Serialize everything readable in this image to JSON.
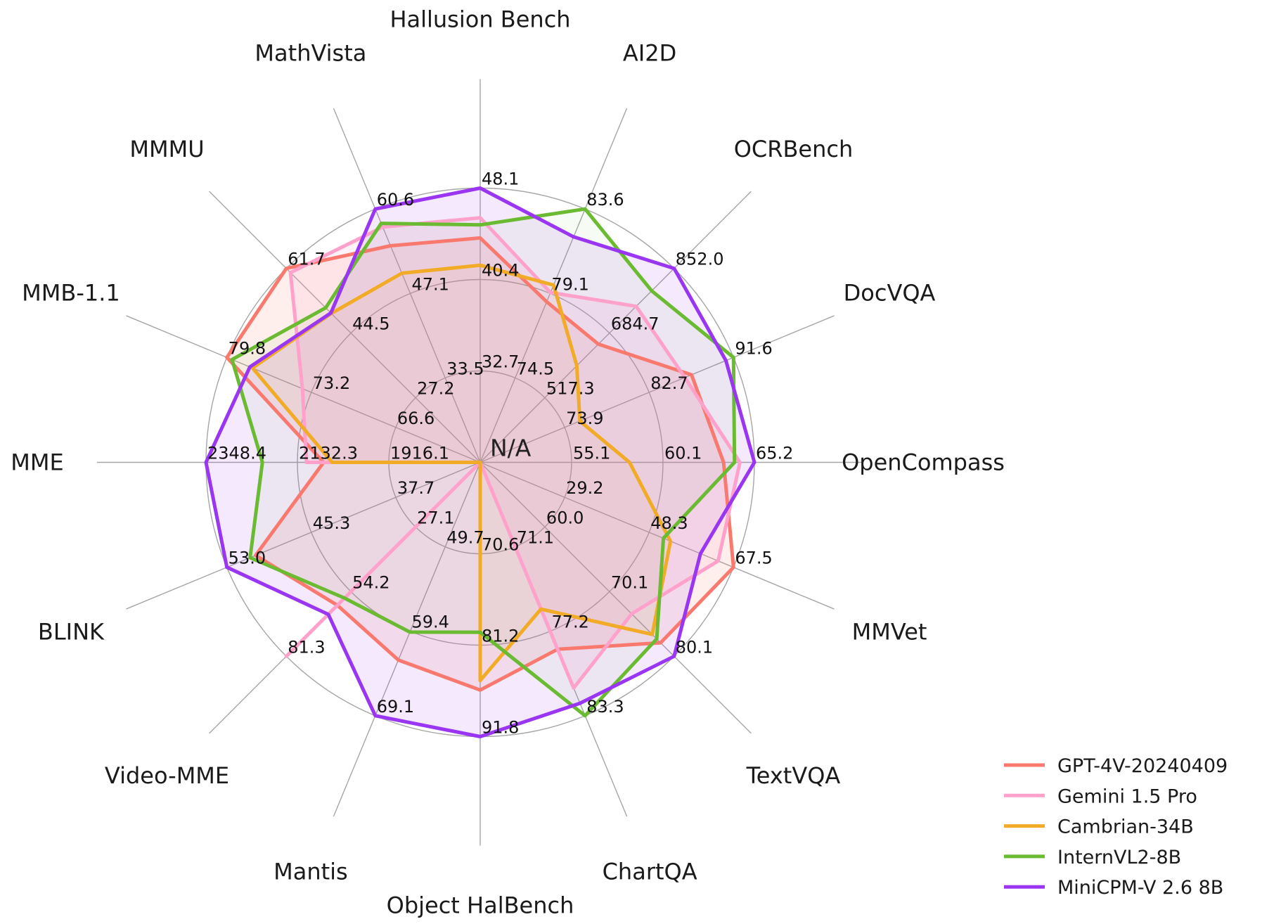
{
  "chart_data": {
    "type": "radar",
    "title": "",
    "center_label": "N/A",
    "grid": {
      "rings_per_axis": 3,
      "ring_fractions": [
        0.3333,
        0.6667,
        1.0
      ],
      "gridlines": true,
      "gridline_color": "#a6a6a6"
    },
    "legend_position": "lower right",
    "axes": [
      {
        "label": "Hallusion Bench",
        "min": 32.7,
        "mid": 40.4,
        "max": 48.1,
        "ticks": [
          "32.7",
          "40.4",
          "48.1"
        ]
      },
      {
        "label": "AI2D",
        "min": 74.5,
        "mid": 79.1,
        "max": 83.6,
        "ticks": [
          "74.5",
          "79.1",
          "83.6"
        ]
      },
      {
        "label": "OCRBench",
        "min": 517.3,
        "mid": 684.7,
        "max": 852.0,
        "ticks": [
          "517.3",
          "684.7",
          "852.0"
        ]
      },
      {
        "label": "DocVQA",
        "min": 73.9,
        "mid": 82.7,
        "max": 91.6,
        "ticks": [
          "73.9",
          "82.7",
          "91.6"
        ]
      },
      {
        "label": "OpenCompass",
        "min": 55.1,
        "mid": 60.1,
        "max": 65.2,
        "ticks": [
          "55.1",
          "60.1",
          "65.2"
        ]
      },
      {
        "label": "MMVet",
        "min": 29.2,
        "mid": 48.3,
        "max": 67.5,
        "ticks": [
          "29.2",
          "48.3",
          "67.5"
        ]
      },
      {
        "label": "TextVQA",
        "min": 60.0,
        "mid": 70.1,
        "max": 80.1,
        "ticks": [
          "60.0",
          "70.1",
          "80.1"
        ]
      },
      {
        "label": "ChartQA",
        "min": 71.1,
        "mid": 77.2,
        "max": 83.3,
        "ticks": [
          "71.1",
          "77.2",
          "83.3"
        ]
      },
      {
        "label": "Object HalBench",
        "min": 70.6,
        "mid": 81.2,
        "max": 91.8,
        "ticks": [
          "70.6",
          "81.2",
          "91.8"
        ]
      },
      {
        "label": "Mantis",
        "min": 49.7,
        "mid": 59.4,
        "max": 69.1,
        "ticks": [
          "49.7",
          "59.4",
          "69.1"
        ]
      },
      {
        "label": "Video-MME",
        "min": 27.1,
        "mid": 54.2,
        "max": 81.3,
        "ticks": [
          "27.1",
          "54.2",
          "81.3"
        ]
      },
      {
        "label": "BLINK",
        "min": 37.7,
        "mid": 45.3,
        "max": 53.0,
        "ticks": [
          "37.7",
          "45.3",
          "53.0"
        ]
      },
      {
        "label": "MME",
        "min": 1916.1,
        "mid": 2132.3,
        "max": 2348.4,
        "ticks": [
          "1916.1",
          "2132.3",
          "2348.4"
        ]
      },
      {
        "label": "MMB-1.1",
        "min": 66.6,
        "mid": 73.2,
        "max": 79.8,
        "ticks": [
          "66.6",
          "73.2",
          "79.8"
        ]
      },
      {
        "label": "MMMU",
        "min": 27.2,
        "mid": 44.5,
        "max": 61.7,
        "ticks": [
          "27.2",
          "44.5",
          "61.7"
        ]
      },
      {
        "label": "MathVista",
        "min": 33.5,
        "mid": 47.1,
        "max": 60.6,
        "ticks": [
          "33.5",
          "47.1",
          "60.6"
        ]
      }
    ],
    "series": [
      {
        "name": "GPT-4V-20240409",
        "color": "#f9796f",
        "fill": "rgba(249,121,111,0.13)",
        "values": [
          43.9,
          78.6,
          656.0,
          87.2,
          63.5,
          67.5,
          78.0,
          78.5,
          86.4,
          62.7,
          59.9,
          50.4,
          2070.2,
          79.8,
          61.7,
          54.7
        ]
      },
      {
        "name": "Gemini 1.5 Pro",
        "color": "#ffa1ca",
        "fill": "rgba(255,161,202,0.13)",
        "values": [
          45.6,
          79.1,
          754.0,
          86.5,
          64.4,
          64.0,
          73.5,
          81.3,
          null,
          null,
          81.3,
          null,
          2110.6,
          73.9,
          60.6,
          57.7
        ]
      },
      {
        "name": "Cambrian-34B",
        "color": "#f1ab26",
        "fill": "rgba(241,171,38,0.06)",
        "values": [
          41.6,
          79.5,
          600.0,
          75.5,
          58.3,
          53.2,
          76.7,
          75.6,
          85.3,
          null,
          null,
          null,
          2049.9,
          77.8,
          49.7,
          50.3
        ]
      },
      {
        "name": "InternVL2-8B",
        "color": "#6abb32",
        "fill": "rgba(106,187,50,0.06)",
        "values": [
          45.0,
          83.6,
          794.0,
          91.6,
          64.1,
          51.6,
          77.4,
          83.3,
          79.7,
          59.5,
          56.9,
          50.9,
          2215.1,
          79.4,
          51.2,
          58.3
        ]
      },
      {
        "name": "MiniCPM-V 2.6 8B",
        "color": "#9a35f1",
        "fill": "rgba(154,53,241,0.11)",
        "values": [
          48.1,
          82.1,
          852.0,
          90.8,
          65.2,
          60.0,
          80.1,
          82.4,
          91.8,
          69.1,
          63.7,
          53.0,
          2348.4,
          78.0,
          49.8,
          60.6
        ]
      }
    ],
    "note": "N/A marks missing values; polygons collapse to the chart center there."
  }
}
